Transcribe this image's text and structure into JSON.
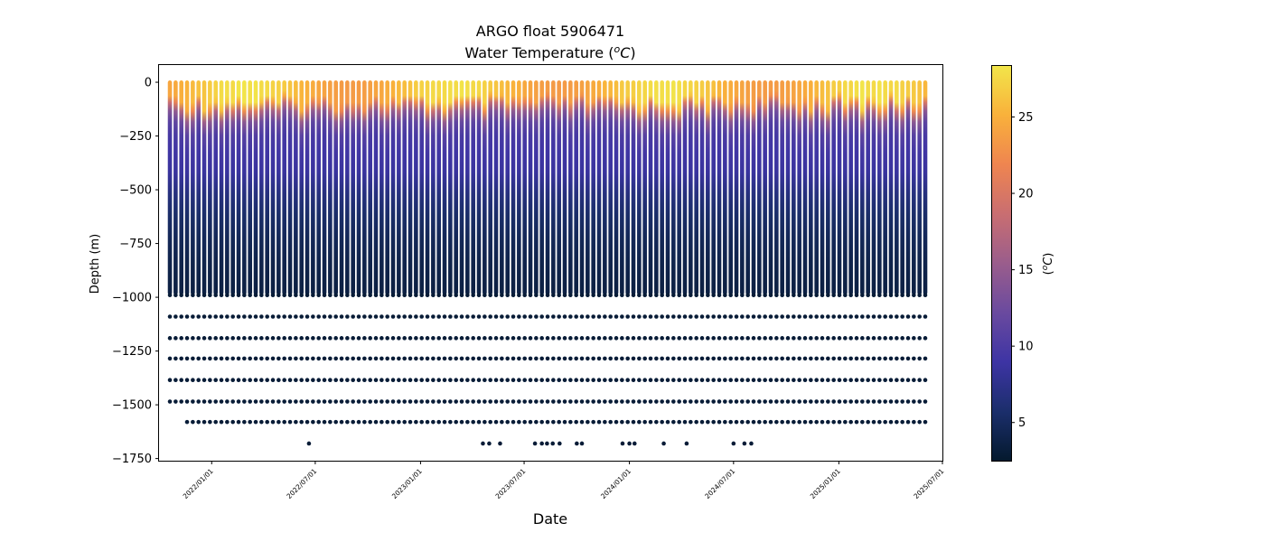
{
  "chart_data": {
    "type": "scatter",
    "title_line1": "ARGO float 5906471",
    "title_line2_prefix": "Water Temperature (",
    "title_line2_unit_sup": "o",
    "title_line2_unit": "C",
    "title_line2_suffix": ")",
    "xlabel": "Date",
    "ylabel": "Depth (m)",
    "colorbar_label_sup": "o",
    "colorbar_label_unit": "C",
    "x_range": [
      "2021-10-01",
      "2025-07-01"
    ],
    "ylim": [
      -1760,
      80
    ],
    "x_ticks": [
      "2022/01/01",
      "2022/07/01",
      "2023/01/01",
      "2023/07/01",
      "2024/01/01",
      "2024/07/01",
      "2025/01/01",
      "2025/07/01"
    ],
    "y_ticks": [
      0,
      -250,
      -500,
      -750,
      -1000,
      -1250,
      -1500,
      -1750
    ],
    "y_tick_labels": [
      "0",
      "−250",
      "−500",
      "−750",
      "−1000",
      "−1250",
      "−1500",
      "−1750"
    ],
    "colorbar": {
      "min": 2.5,
      "max": 28.4,
      "ticks": [
        5,
        10,
        15,
        20,
        25
      ],
      "tick_labels": [
        "5",
        "10",
        "15",
        "20",
        "25"
      ],
      "colormap": [
        "#04192d",
        "#1b2e6b",
        "#3d34a4",
        "#6a4a9f",
        "#9a5d8c",
        "#c96e71",
        "#ef8550",
        "#f9b13b",
        "#f2e64a"
      ]
    },
    "profiles": {
      "first_date": "2021-10-20",
      "last_date": "2025-06-10",
      "interval_days": 10,
      "profile_top_depth": 0,
      "profile_bottom_depth": -980,
      "deep_levels": [
        -990,
        -1090,
        -1190,
        -1285,
        -1385,
        -1485,
        -1580,
        -1680
      ],
      "level_1580_start_date": "2021-11-10",
      "level_1680_dates": [
        "2022-06-20",
        "2023-04-20",
        "2023-05-01",
        "2023-05-20",
        "2023-07-20",
        "2023-08-01",
        "2023-08-10",
        "2023-08-20",
        "2023-09-01",
        "2023-10-01",
        "2023-10-10",
        "2023-12-20",
        "2024-01-01",
        "2024-01-10",
        "2024-03-01",
        "2024-04-10",
        "2024-07-01",
        "2024-07-20",
        "2024-08-01"
      ],
      "surface_temp_range": [
        23.5,
        28.4
      ],
      "thermocline_depth_range": [
        -20,
        -140
      ],
      "deep_temp": 3.0
    }
  }
}
